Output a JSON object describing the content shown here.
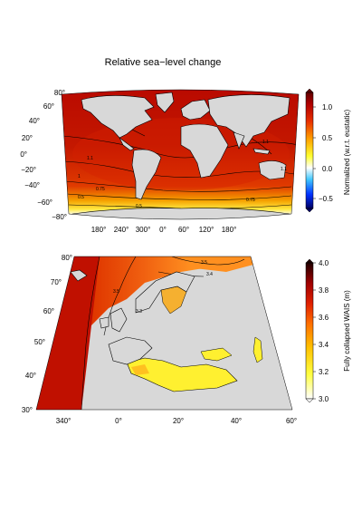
{
  "title": "Relative sea−level change",
  "panel_top": {
    "lat_ticks": [
      "80°",
      "60°",
      "40°",
      "20°",
      "0°",
      "−20°",
      "−40°",
      "−60°",
      "−80°"
    ],
    "lon_ticks": [
      "180°",
      "240°",
      "300°",
      "0°",
      "60°",
      "120°",
      "180°"
    ],
    "colorbar": {
      "label": "Normalized (w.r.t. eustatic)",
      "ticks": [
        "1.0",
        "0.5",
        "0.0",
        "−0.5"
      ],
      "range": [
        -0.7,
        1.3
      ],
      "colors": [
        "#000060",
        "#0030ff",
        "#40c8ff",
        "#ffffff",
        "#ffff30",
        "#ffa000",
        "#e83000",
        "#b00000",
        "#600000"
      ]
    },
    "contour_labels": [
      "1.1",
      "1.1",
      "1.1",
      "1",
      "0.75",
      "0.5",
      "0.75",
      "0.5"
    ]
  },
  "panel_bottom": {
    "lat_ticks": [
      "80°",
      "70°",
      "60°",
      "50°",
      "40°",
      "30°"
    ],
    "lon_ticks": [
      "340°",
      "0°",
      "20°",
      "40°",
      "60°"
    ],
    "colorbar": {
      "label": "Fully collapsed WAIS (m)",
      "ticks": [
        "4.0",
        "3.8",
        "3.6",
        "3.4",
        "3.2",
        "3.0"
      ],
      "range": [
        3.0,
        4.0
      ],
      "colors": [
        "#ffffff",
        "#ffff40",
        "#ffc000",
        "#ff7000",
        "#e02000",
        "#a00000",
        "#200000"
      ]
    },
    "contour_labels": [
      "3.5",
      "3.4",
      "3.5",
      "3.3"
    ]
  }
}
